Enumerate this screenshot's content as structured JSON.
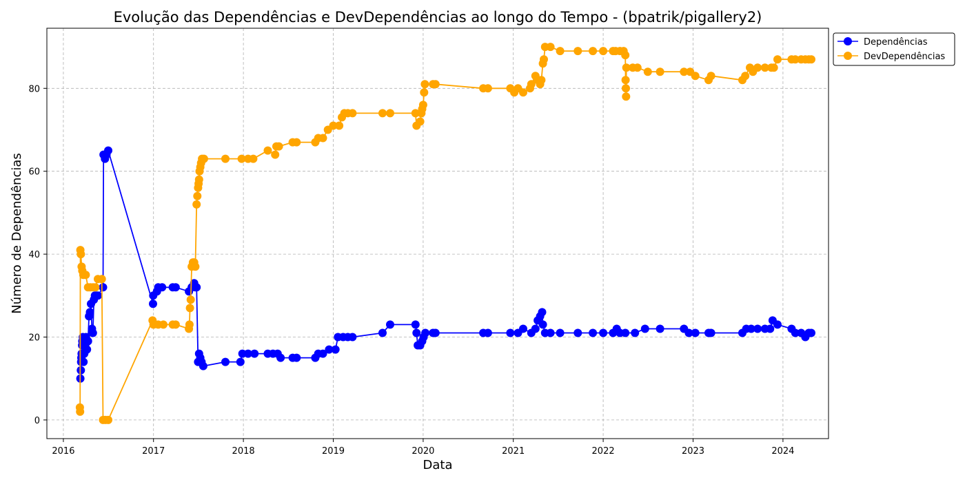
{
  "chart_data": {
    "type": "line",
    "title": "Evolução das Dependências e DevDependências ao longo do Tempo - (bpatrik/pigallery2)",
    "xlabel": "Data",
    "ylabel": "Número de Dependências",
    "xlim": [
      "2015-10-26",
      "2024-07-04"
    ],
    "ylim": [
      -4.5,
      94.5
    ],
    "x_ticks": [
      "2016",
      "2017",
      "2018",
      "2019",
      "2020",
      "2021",
      "2022",
      "2023",
      "2024"
    ],
    "y_ticks": [
      0,
      20,
      40,
      60,
      80
    ],
    "grid": true,
    "legend_position": "outside-top-right",
    "series": [
      {
        "name": "Dependências",
        "color": "#0000ff",
        "points": [
          [
            "2016-03-10",
            10
          ],
          [
            "2016-03-12",
            12
          ],
          [
            "2016-03-13",
            14
          ],
          [
            "2016-03-14",
            15
          ],
          [
            "2016-03-15",
            16
          ],
          [
            "2016-03-17",
            18
          ],
          [
            "2016-03-18",
            19
          ],
          [
            "2016-03-20",
            20
          ],
          [
            "2016-03-23",
            14
          ],
          [
            "2016-03-26",
            16
          ],
          [
            "2016-03-30",
            18
          ],
          [
            "2016-04-02",
            20
          ],
          [
            "2016-04-06",
            17
          ],
          [
            "2016-04-10",
            19
          ],
          [
            "2016-04-14",
            25
          ],
          [
            "2016-04-18",
            26
          ],
          [
            "2016-04-22",
            28
          ],
          [
            "2016-04-26",
            22
          ],
          [
            "2016-04-30",
            21
          ],
          [
            "2016-05-04",
            29
          ],
          [
            "2016-05-08",
            30
          ],
          [
            "2016-05-14",
            30
          ],
          [
            "2016-05-20",
            30
          ],
          [
            "2016-06-10",
            32
          ],
          [
            "2016-06-12",
            64
          ],
          [
            "2016-06-18",
            63
          ],
          [
            "2016-06-24",
            64
          ],
          [
            "2016-07-01",
            65
          ],
          [
            "2016-12-30",
            28
          ],
          [
            "2016-12-31",
            30
          ],
          [
            "2017-01-15",
            31
          ],
          [
            "2017-01-20",
            32
          ],
          [
            "2017-02-05",
            32
          ],
          [
            "2017-03-20",
            32
          ],
          [
            "2017-04-01",
            32
          ],
          [
            "2017-05-25",
            31
          ],
          [
            "2017-06-05",
            32
          ],
          [
            "2017-06-15",
            33
          ],
          [
            "2017-06-20",
            32
          ],
          [
            "2017-06-25",
            32
          ],
          [
            "2017-07-01",
            14
          ],
          [
            "2017-07-05",
            16
          ],
          [
            "2017-07-10",
            15
          ],
          [
            "2017-07-15",
            14
          ],
          [
            "2017-07-22",
            13
          ],
          [
            "2017-10-20",
            14
          ],
          [
            "2017-12-20",
            14
          ],
          [
            "2017-12-28",
            16
          ],
          [
            "2018-01-20",
            16
          ],
          [
            "2018-02-15",
            16
          ],
          [
            "2018-04-10",
            16
          ],
          [
            "2018-05-01",
            16
          ],
          [
            "2018-05-20",
            16
          ],
          [
            "2018-06-01",
            15
          ],
          [
            "2018-07-20",
            15
          ],
          [
            "2018-08-05",
            15
          ],
          [
            "2018-10-20",
            15
          ],
          [
            "2018-11-01",
            16
          ],
          [
            "2018-11-20",
            16
          ],
          [
            "2018-12-15",
            17
          ],
          [
            "2019-01-10",
            17
          ],
          [
            "2019-01-20",
            20
          ],
          [
            "2019-02-10",
            20
          ],
          [
            "2019-03-01",
            20
          ],
          [
            "2019-03-20",
            20
          ],
          [
            "2019-07-20",
            21
          ],
          [
            "2019-08-20",
            23
          ],
          [
            "2019-12-01",
            23
          ],
          [
            "2019-12-05",
            21
          ],
          [
            "2019-12-10",
            18
          ],
          [
            "2019-12-20",
            18
          ],
          [
            "2019-12-28",
            19
          ],
          [
            "2020-01-03",
            20
          ],
          [
            "2020-01-10",
            21
          ],
          [
            "2020-02-10",
            21
          ],
          [
            "2020-02-20",
            21
          ],
          [
            "2020-09-01",
            21
          ],
          [
            "2020-09-20",
            21
          ],
          [
            "2020-12-20",
            21
          ],
          [
            "2021-01-20",
            21
          ],
          [
            "2021-02-10",
            22
          ],
          [
            "2021-03-15",
            21
          ],
          [
            "2021-04-01",
            22
          ],
          [
            "2021-04-10",
            24
          ],
          [
            "2021-04-20",
            25
          ],
          [
            "2021-04-28",
            26
          ],
          [
            "2021-05-01",
            23
          ],
          [
            "2021-05-10",
            21
          ],
          [
            "2021-06-01",
            21
          ],
          [
            "2021-07-10",
            21
          ],
          [
            "2021-09-20",
            21
          ],
          [
            "2021-11-20",
            21
          ],
          [
            "2022-01-01",
            21
          ],
          [
            "2022-02-10",
            21
          ],
          [
            "2022-02-25",
            22
          ],
          [
            "2022-03-10",
            21
          ],
          [
            "2022-04-01",
            21
          ],
          [
            "2022-05-10",
            21
          ],
          [
            "2022-06-20",
            22
          ],
          [
            "2022-08-20",
            22
          ],
          [
            "2022-11-25",
            22
          ],
          [
            "2022-12-15",
            21
          ],
          [
            "2023-01-10",
            21
          ],
          [
            "2023-03-05",
            21
          ],
          [
            "2023-03-15",
            21
          ],
          [
            "2023-07-20",
            21
          ],
          [
            "2023-08-05",
            22
          ],
          [
            "2023-08-25",
            22
          ],
          [
            "2023-09-20",
            22
          ],
          [
            "2023-10-20",
            22
          ],
          [
            "2023-11-10",
            22
          ],
          [
            "2023-11-20",
            24
          ],
          [
            "2023-12-10",
            23
          ],
          [
            "2024-02-05",
            22
          ],
          [
            "2024-02-20",
            21
          ],
          [
            "2024-03-15",
            21
          ],
          [
            "2024-04-01",
            20
          ],
          [
            "2024-04-15",
            21
          ],
          [
            "2024-04-25",
            21
          ]
        ]
      },
      {
        "name": "DevDependências",
        "color": "#ffa500",
        "points": [
          [
            "2016-03-08",
            3
          ],
          [
            "2016-03-09",
            2
          ],
          [
            "2016-03-10",
            41
          ],
          [
            "2016-03-12",
            40
          ],
          [
            "2016-03-15",
            37
          ],
          [
            "2016-03-18",
            36
          ],
          [
            "2016-03-22",
            35
          ],
          [
            "2016-04-01",
            35
          ],
          [
            "2016-04-10",
            32
          ],
          [
            "2016-04-20",
            32
          ],
          [
            "2016-05-01",
            32
          ],
          [
            "2016-05-10",
            32
          ],
          [
            "2016-05-20",
            34
          ],
          [
            "2016-06-05",
            34
          ],
          [
            "2016-06-10",
            0
          ],
          [
            "2016-06-20",
            0
          ],
          [
            "2016-07-01",
            0
          ],
          [
            "2016-12-28",
            24
          ],
          [
            "2017-01-01",
            23
          ],
          [
            "2017-01-20",
            23
          ],
          [
            "2017-02-10",
            23
          ],
          [
            "2017-03-20",
            23
          ],
          [
            "2017-04-01",
            23
          ],
          [
            "2017-05-25",
            22
          ],
          [
            "2017-05-27",
            23
          ],
          [
            "2017-05-29",
            27
          ],
          [
            "2017-06-01",
            29
          ],
          [
            "2017-06-05",
            37
          ],
          [
            "2017-06-10",
            38
          ],
          [
            "2017-06-15",
            38
          ],
          [
            "2017-06-20",
            37
          ],
          [
            "2017-06-25",
            52
          ],
          [
            "2017-06-28",
            54
          ],
          [
            "2017-07-01",
            56
          ],
          [
            "2017-07-03",
            57
          ],
          [
            "2017-07-05",
            58
          ],
          [
            "2017-07-07",
            60
          ],
          [
            "2017-07-10",
            61
          ],
          [
            "2017-07-13",
            62
          ],
          [
            "2017-07-17",
            63
          ],
          [
            "2017-07-25",
            63
          ],
          [
            "2017-10-20",
            63
          ],
          [
            "2017-12-25",
            63
          ],
          [
            "2018-01-20",
            63
          ],
          [
            "2018-02-10",
            63
          ],
          [
            "2018-04-10",
            65
          ],
          [
            "2018-05-10",
            64
          ],
          [
            "2018-05-15",
            66
          ],
          [
            "2018-05-25",
            66
          ],
          [
            "2018-07-20",
            67
          ],
          [
            "2018-08-05",
            67
          ],
          [
            "2018-10-20",
            67
          ],
          [
            "2018-11-01",
            68
          ],
          [
            "2018-11-20",
            68
          ],
          [
            "2018-12-10",
            70
          ],
          [
            "2019-01-01",
            71
          ],
          [
            "2019-01-25",
            71
          ],
          [
            "2019-02-05",
            73
          ],
          [
            "2019-02-15",
            74
          ],
          [
            "2019-03-01",
            74
          ],
          [
            "2019-03-20",
            74
          ],
          [
            "2019-07-20",
            74
          ],
          [
            "2019-08-20",
            74
          ],
          [
            "2019-12-01",
            74
          ],
          [
            "2019-12-05",
            71
          ],
          [
            "2019-12-20",
            72
          ],
          [
            "2019-12-25",
            74
          ],
          [
            "2019-12-28",
            75
          ],
          [
            "2020-01-01",
            76
          ],
          [
            "2020-01-05",
            79
          ],
          [
            "2020-01-08",
            81
          ],
          [
            "2020-02-10",
            81
          ],
          [
            "2020-02-20",
            81
          ],
          [
            "2020-09-01",
            80
          ],
          [
            "2020-09-20",
            80
          ],
          [
            "2020-12-20",
            80
          ],
          [
            "2021-01-05",
            79
          ],
          [
            "2021-01-20",
            80
          ],
          [
            "2021-02-10",
            79
          ],
          [
            "2021-03-10",
            80
          ],
          [
            "2021-03-15",
            81
          ],
          [
            "2021-04-01",
            83
          ],
          [
            "2021-04-10",
            82
          ],
          [
            "2021-04-20",
            81
          ],
          [
            "2021-04-25",
            82
          ],
          [
            "2021-05-01",
            86
          ],
          [
            "2021-05-05",
            87
          ],
          [
            "2021-05-10",
            90
          ],
          [
            "2021-06-01",
            90
          ],
          [
            "2021-07-10",
            89
          ],
          [
            "2021-09-20",
            89
          ],
          [
            "2021-11-20",
            89
          ],
          [
            "2022-01-01",
            89
          ],
          [
            "2022-02-10",
            89
          ],
          [
            "2022-02-20",
            89
          ],
          [
            "2022-03-10",
            89
          ],
          [
            "2022-03-25",
            89
          ],
          [
            "2022-04-01",
            88
          ],
          [
            "2022-04-02",
            82
          ],
          [
            "2022-04-03",
            80
          ],
          [
            "2022-04-04",
            78
          ],
          [
            "2022-04-05",
            85
          ],
          [
            "2022-05-01",
            85
          ],
          [
            "2022-05-20",
            85
          ],
          [
            "2022-07-01",
            84
          ],
          [
            "2022-08-20",
            84
          ],
          [
            "2022-11-25",
            84
          ],
          [
            "2022-12-20",
            84
          ],
          [
            "2023-01-10",
            83
          ],
          [
            "2023-03-05",
            82
          ],
          [
            "2023-03-15",
            83
          ],
          [
            "2023-07-20",
            82
          ],
          [
            "2023-08-01",
            83
          ],
          [
            "2023-08-20",
            85
          ],
          [
            "2023-09-01",
            84
          ],
          [
            "2023-09-20",
            85
          ],
          [
            "2023-10-20",
            85
          ],
          [
            "2023-11-15",
            85
          ],
          [
            "2023-11-25",
            85
          ],
          [
            "2023-12-10",
            87
          ],
          [
            "2024-02-05",
            87
          ],
          [
            "2024-02-20",
            87
          ],
          [
            "2024-03-15",
            87
          ],
          [
            "2024-04-01",
            87
          ],
          [
            "2024-04-15",
            87
          ],
          [
            "2024-04-25",
            87
          ]
        ]
      }
    ]
  }
}
